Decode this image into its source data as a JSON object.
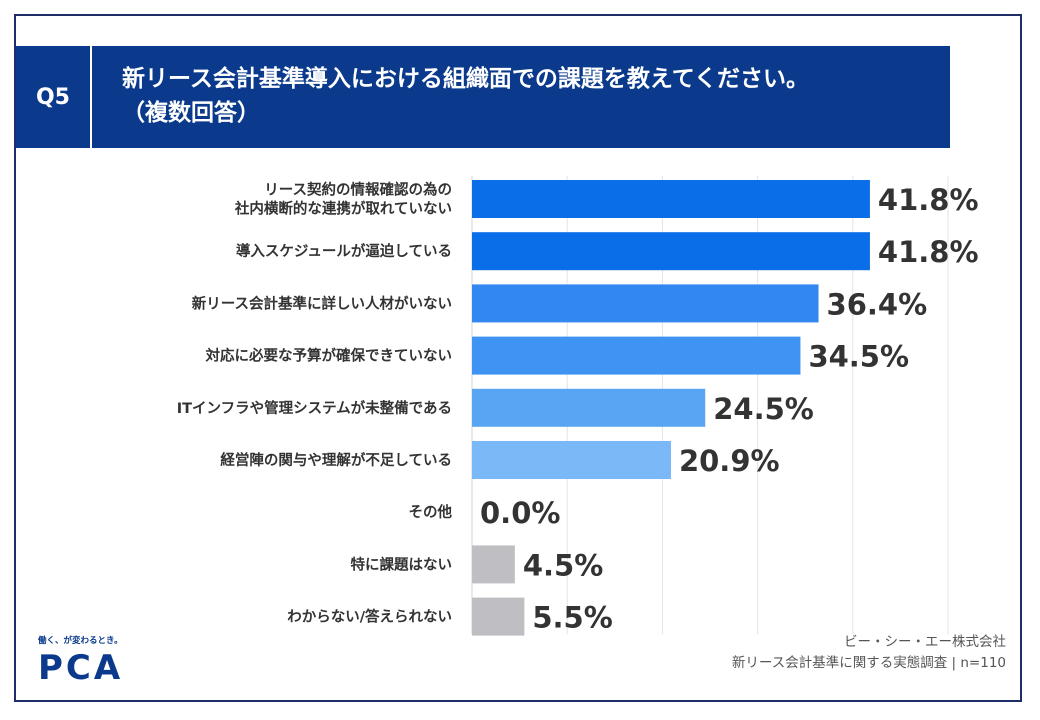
{
  "question": {
    "badge": "Q5",
    "title_line1": "新リース会計基準導入における組織面での課題を教えてください。",
    "title_line2": "（複数回答）"
  },
  "chart_data": {
    "type": "bar",
    "orientation": "horizontal",
    "categories": [
      [
        "リース契約の情報確認の為の",
        "社内横断的な連携が取れていない"
      ],
      [
        "導入スケジュールが逼迫している"
      ],
      [
        "新リース会計基準に詳しい人材がいない"
      ],
      [
        "対応に必要な予算が確保できていない"
      ],
      [
        "ITインフラや管理システムが未整備である"
      ],
      [
        "経営陣の関与や理解が不足している"
      ],
      [
        "その他"
      ],
      [
        "特に課題はない"
      ],
      [
        "わからない/答えられない"
      ]
    ],
    "values": [
      41.8,
      41.8,
      36.4,
      34.5,
      24.5,
      20.9,
      0.0,
      4.5,
      5.5
    ],
    "value_labels": [
      "41.8%",
      "41.8%",
      "36.4%",
      "34.5%",
      "24.5%",
      "20.9%",
      "0.0%",
      "4.5%",
      "5.5%"
    ],
    "bar_colors": [
      "#0a6ee8",
      "#0a6ee8",
      "#3288f0",
      "#3f93f2",
      "#5aa4f4",
      "#7ab8f7",
      "#a7d0fa",
      "#bfbfc3",
      "#bfbfc3"
    ],
    "xlim": [
      0,
      50
    ],
    "grid": true
  },
  "footer": {
    "company": "ビー・シー・エー株式会社",
    "survey": "新リース会計基準に関する実態調査 | n=110"
  },
  "logo": {
    "tagline": "働く、が変わるとき。",
    "wordmark": "PCA"
  }
}
